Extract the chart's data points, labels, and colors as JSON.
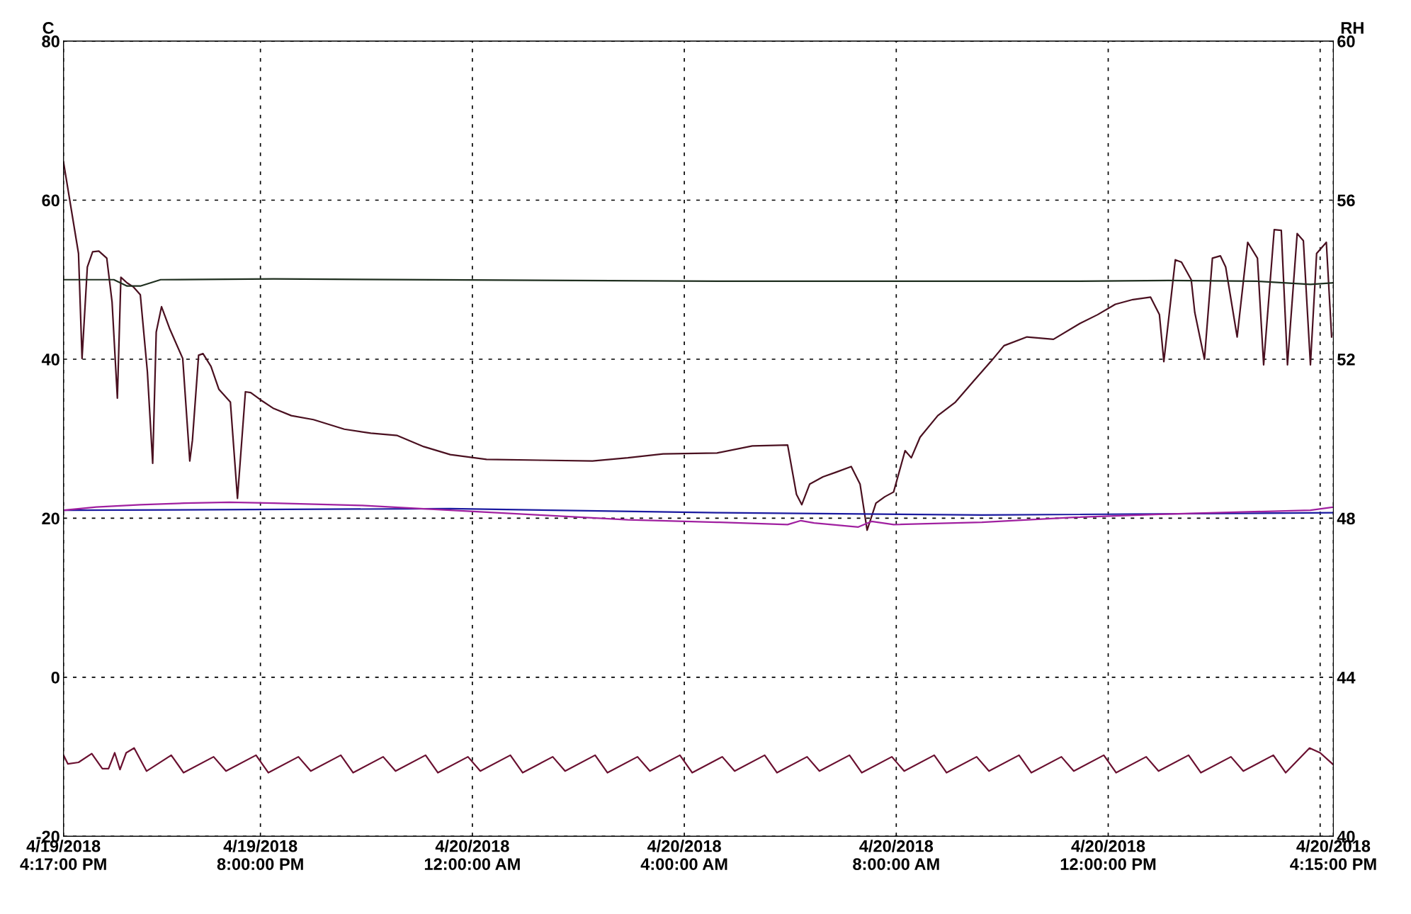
{
  "chart_data": {
    "type": "line",
    "ylabel": "C",
    "y2label": "RH",
    "xlim": [
      "2018-04-19T16:17",
      "2018-04-20T16:15"
    ],
    "xticks": [
      {
        "value": "2018-04-19T16:17",
        "label": "4/19/2018\n4:17:00 PM"
      },
      {
        "value": "2018-04-19T20:00",
        "label": "4/19/2018\n8:00:00 PM"
      },
      {
        "value": "2018-04-20T00:00",
        "label": "4/20/2018\n12:00:00 AM"
      },
      {
        "value": "2018-04-20T04:00",
        "label": "4/20/2018\n4:00:00 AM"
      },
      {
        "value": "2018-04-20T08:00",
        "label": "4/20/2018\n8:00:00 AM"
      },
      {
        "value": "2018-04-20T12:00",
        "label": "4/20/2018\n12:00:00 PM"
      },
      {
        "value": "2018-04-20T16:00",
        "label": null
      },
      {
        "value": "2018-04-20T16:15",
        "label": "4/20/2018\n4:15:00 PM"
      }
    ],
    "ylim": [
      -20,
      80
    ],
    "yticks": [
      -20,
      0,
      20,
      40,
      60,
      80
    ],
    "y2lim": [
      40,
      60
    ],
    "y2ticks": [
      40,
      44,
      48,
      52,
      56,
      60
    ],
    "grid": true,
    "legend": false,
    "line_style": "solid",
    "marker": "none",
    "series": [
      {
        "color": "#4a1020",
        "x": [
          "2018-04-19T16:17",
          "2018-04-19T16:34",
          "2018-04-19T16:38",
          "2018-04-19T16:44",
          "2018-04-19T16:50",
          "2018-04-19T16:57",
          "2018-04-19T17:06",
          "2018-04-19T17:12",
          "2018-04-19T17:18",
          "2018-04-19T17:22",
          "2018-04-19T17:29",
          "2018-04-19T17:36",
          "2018-04-19T17:44",
          "2018-04-19T17:52",
          "2018-04-19T17:58",
          "2018-04-19T18:02",
          "2018-04-19T18:08",
          "2018-04-19T18:17",
          "2018-04-19T18:32",
          "2018-04-19T18:40",
          "2018-04-19T18:43",
          "2018-04-19T18:50",
          "2018-04-19T18:55",
          "2018-04-19T19:04",
          "2018-04-19T19:13",
          "2018-04-19T19:26",
          "2018-04-19T19:34",
          "2018-04-19T19:43",
          "2018-04-19T19:49",
          "2018-04-19T20:00",
          "2018-04-19T20:15",
          "2018-04-19T20:35",
          "2018-04-19T21:00",
          "2018-04-19T21:35",
          "2018-04-19T22:05",
          "2018-04-19T22:35",
          "2018-04-19T23:05",
          "2018-04-19T23:35",
          "2018-04-20T00:16",
          "2018-04-20T01:16",
          "2018-04-20T02:16",
          "2018-04-20T02:56",
          "2018-04-20T03:36",
          "2018-04-20T04:37",
          "2018-04-20T05:17",
          "2018-04-20T05:57",
          "2018-04-20T06:07",
          "2018-04-20T06:13",
          "2018-04-20T06:22",
          "2018-04-20T06:37",
          "2018-04-20T06:52",
          "2018-04-20T07:09",
          "2018-04-20T07:19",
          "2018-04-20T07:27",
          "2018-04-20T07:37",
          "2018-04-20T07:47",
          "2018-04-20T07:57",
          "2018-04-20T08:10",
          "2018-04-20T08:17",
          "2018-04-20T08:27",
          "2018-04-20T08:47",
          "2018-04-20T09:07",
          "2018-04-20T09:28",
          "2018-04-20T09:47",
          "2018-04-20T10:02",
          "2018-04-20T10:28",
          "2018-04-20T10:58",
          "2018-04-20T11:28",
          "2018-04-20T11:48",
          "2018-04-20T12:08",
          "2018-04-20T12:28",
          "2018-04-20T12:48",
          "2018-04-20T12:58",
          "2018-04-20T13:03",
          "2018-04-20T13:16",
          "2018-04-20T13:23",
          "2018-04-20T13:34",
          "2018-04-20T13:38",
          "2018-04-20T13:49",
          "2018-04-20T13:58",
          "2018-04-20T14:07",
          "2018-04-20T14:13",
          "2018-04-20T14:26",
          "2018-04-20T14:38",
          "2018-04-20T14:49",
          "2018-04-20T14:56",
          "2018-04-20T15:08",
          "2018-04-20T15:16",
          "2018-04-20T15:23",
          "2018-04-20T15:34",
          "2018-04-20T15:41",
          "2018-04-20T15:49",
          "2018-04-20T15:56",
          "2018-04-20T16:07",
          "2018-04-20T16:13"
        ],
        "values": [
          64.8,
          53.3,
          40.1,
          51.6,
          53.5,
          53.6,
          52.7,
          47.2,
          35.1,
          50.3,
          49.6,
          49.1,
          48.1,
          38.4,
          26.9,
          43.4,
          46.6,
          43.9,
          40.1,
          27.2,
          29.8,
          40.5,
          40.7,
          39.1,
          36.2,
          34.6,
          22.5,
          35.9,
          35.8,
          34.9,
          33.8,
          32.9,
          32.4,
          31.2,
          30.7,
          30.4,
          29.0,
          28.0,
          27.4,
          27.3,
          27.2,
          27.6,
          28.1,
          28.2,
          29.1,
          29.2,
          23.0,
          21.7,
          24.3,
          25.2,
          25.8,
          26.5,
          24.3,
          18.5,
          21.9,
          22.7,
          23.3,
          28.5,
          27.6,
          30.2,
          32.9,
          34.6,
          37.3,
          39.7,
          41.7,
          42.8,
          42.5,
          44.5,
          45.6,
          46.9,
          47.5,
          47.8,
          45.6,
          39.7,
          52.5,
          52.2,
          50.0,
          45.9,
          40.0,
          52.7,
          53.0,
          51.6,
          42.8,
          54.7,
          52.7,
          39.3,
          56.3,
          56.2,
          39.3,
          55.8,
          54.9,
          39.3,
          53.3,
          54.7,
          42.8
        ]
      },
      {
        "color": "#1f2f1f",
        "x": [
          "2018-04-19T16:17",
          "2018-04-19T17:14",
          "2018-04-19T17:29",
          "2018-04-19T17:44",
          "2018-04-19T18:07",
          "2018-04-19T20:15",
          "2018-04-20T04:37",
          "2018-04-20T11:28",
          "2018-04-20T13:08",
          "2018-04-20T14:49",
          "2018-04-20T15:49",
          "2018-04-20T16:15"
        ],
        "values": [
          50.0,
          50.0,
          49.2,
          49.2,
          50.0,
          50.1,
          49.8,
          49.8,
          49.9,
          49.8,
          49.4,
          49.6
        ]
      },
      {
        "color": "#1a1aa0",
        "x": [
          "2018-04-19T16:17",
          "2018-04-19T23:35",
          "2018-04-20T04:37",
          "2018-04-20T09:37",
          "2018-04-20T16:15"
        ],
        "values": [
          21.0,
          21.2,
          20.7,
          20.4,
          20.7
        ]
      },
      {
        "color": "#a020a0",
        "x": [
          "2018-04-19T16:17",
          "2018-04-19T16:54",
          "2018-04-19T17:44",
          "2018-04-19T18:34",
          "2018-04-19T19:25",
          "2018-04-19T20:15",
          "2018-04-19T21:55",
          "2018-04-19T23:35",
          "2018-04-20T01:16",
          "2018-04-20T02:56",
          "2018-04-20T04:37",
          "2018-04-20T05:57",
          "2018-04-20T06:12",
          "2018-04-20T06:27",
          "2018-04-20T07:17",
          "2018-04-20T07:32",
          "2018-04-20T07:57",
          "2018-04-20T09:37",
          "2018-04-20T11:18",
          "2018-04-20T12:58",
          "2018-04-20T14:38",
          "2018-04-20T15:49",
          "2018-04-20T16:15"
        ],
        "values": [
          21.0,
          21.4,
          21.7,
          21.9,
          22.0,
          21.9,
          21.6,
          21.0,
          20.4,
          19.8,
          19.5,
          19.2,
          19.7,
          19.4,
          18.9,
          19.6,
          19.2,
          19.5,
          20.1,
          20.5,
          20.8,
          21.0,
          21.4
        ]
      },
      {
        "color": "#6a1030",
        "x": [
          "2018-04-19T16:17",
          "2018-04-19T16:22",
          "2018-04-19T16:34",
          "2018-04-19T16:49",
          "2018-04-19T17:01",
          "2018-04-19T17:08",
          "2018-04-19T17:15",
          "2018-04-19T17:21",
          "2018-04-19T17:28",
          "2018-04-19T17:37",
          "2018-04-19T17:51",
          "2018-04-19T18:19",
          "2018-04-19T18:33",
          "2018-04-19T19:07",
          "2018-04-19T19:21",
          "2018-04-19T19:55",
          "2018-04-19T20:09",
          "2018-04-19T20:43",
          "2018-04-19T20:57",
          "2018-04-19T21:31",
          "2018-04-19T21:45",
          "2018-04-19T22:19",
          "2018-04-19T22:33",
          "2018-04-19T23:07",
          "2018-04-19T23:21",
          "2018-04-19T23:55",
          "2018-04-20T00:09",
          "2018-04-20T00:43",
          "2018-04-20T00:57",
          "2018-04-20T01:31",
          "2018-04-20T01:45",
          "2018-04-20T02:19",
          "2018-04-20T02:33",
          "2018-04-20T03:07",
          "2018-04-20T03:21",
          "2018-04-20T03:55",
          "2018-04-20T04:09",
          "2018-04-20T04:43",
          "2018-04-20T04:57",
          "2018-04-20T05:31",
          "2018-04-20T05:45",
          "2018-04-20T06:19",
          "2018-04-20T06:33",
          "2018-04-20T07:07",
          "2018-04-20T07:21",
          "2018-04-20T07:55",
          "2018-04-20T08:09",
          "2018-04-20T08:43",
          "2018-04-20T08:57",
          "2018-04-20T09:31",
          "2018-04-20T09:45",
          "2018-04-20T10:19",
          "2018-04-20T10:33",
          "2018-04-20T11:07",
          "2018-04-20T11:21",
          "2018-04-20T11:55",
          "2018-04-20T12:09",
          "2018-04-20T12:43",
          "2018-04-20T12:57",
          "2018-04-20T13:31",
          "2018-04-20T13:45",
          "2018-04-20T14:19",
          "2018-04-20T14:33",
          "2018-04-20T15:07",
          "2018-04-20T15:21",
          "2018-04-20T15:48",
          "2018-04-20T16:00",
          "2018-04-20T16:15"
        ],
        "values": [
          -9.8,
          -10.9,
          -10.7,
          -9.6,
          -11.5,
          -11.5,
          -9.5,
          -11.6,
          -9.5,
          -8.9,
          -11.8,
          -9.8,
          -12.0,
          -10.0,
          -11.8,
          -9.8,
          -12.0,
          -10.0,
          -11.8,
          -9.8,
          -12.0,
          -10.0,
          -11.8,
          -9.8,
          -12.0,
          -10.0,
          -11.8,
          -9.8,
          -12.0,
          -10.0,
          -11.8,
          -9.8,
          -12.0,
          -10.0,
          -11.8,
          -9.8,
          -12.0,
          -10.0,
          -11.8,
          -9.8,
          -12.0,
          -10.0,
          -11.8,
          -9.8,
          -12.0,
          -10.0,
          -11.8,
          -9.8,
          -12.0,
          -10.0,
          -11.8,
          -9.8,
          -12.0,
          -10.0,
          -11.8,
          -9.8,
          -12.0,
          -10.0,
          -11.8,
          -9.8,
          -12.0,
          -10.0,
          -11.8,
          -9.8,
          -12.0,
          -8.9,
          -9.5,
          -11.0
        ]
      }
    ]
  }
}
